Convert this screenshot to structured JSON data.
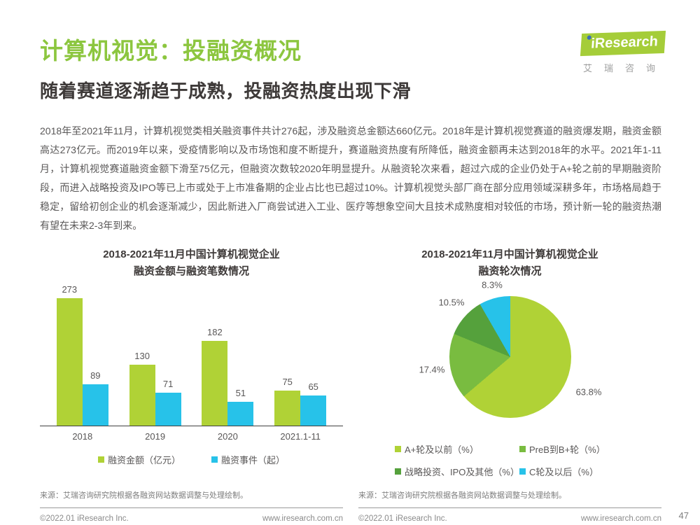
{
  "header": {
    "title": "计算机视觉：投融资概况",
    "subtitle": "随着赛道逐渐趋于成熟，投融资热度出现下滑"
  },
  "logo": {
    "brand": "iResearch",
    "brand_cn": "艾瑞咨询"
  },
  "body": {
    "paragraph": "2018年至2021年11月，计算机视觉类相关融资事件共计276起，涉及融资总金额达660亿元。2018年是计算机视觉赛道的融资爆发期，融资金额高达273亿元。而2019年以来，受疫情影响以及市场饱和度不断提升，赛道融资热度有所降低，融资金额再未达到2018年的水平。2021年1-11月，计算机视觉赛道融资金额下滑至75亿元，但融资次数较2020年明显提升。从融资轮次来看，超过六成的企业仍处于A+轮之前的早期融资阶段，而进入战略投资及IPO等已上市或处于上市准备期的企业占比也已超过10%。计算机视觉头部厂商在部分应用领域深耕多年，市场格局趋于稳定，留给初创企业的机会逐渐减少，因此新进入厂商尝试进入工业、医疗等想象空间大且技术成熟度相对较低的市场，预计新一轮的融资热潮有望在未来2-3年到来。"
  },
  "charts": {
    "bar": {
      "title_line1": "2018-2021年11月中国计算机视觉企业",
      "title_line2": "融资金额与融资笔数情况"
    },
    "pie": {
      "title_line1": "2018-2021年11月中国计算机视觉企业",
      "title_line2": "融资轮次情况"
    }
  },
  "chart_data": [
    {
      "type": "bar",
      "title": "2018-2021年11月中国计算机视觉企业融资金额与融资笔数情况",
      "categories": [
        "2018",
        "2019",
        "2020",
        "2021.1-11"
      ],
      "series": [
        {
          "name": "融资金额（亿元）",
          "color": "#b0d236",
          "values": [
            273,
            130,
            182,
            75
          ]
        },
        {
          "name": "融资事件（起）",
          "color": "#27c2e9",
          "values": [
            89,
            71,
            51,
            65
          ]
        }
      ],
      "ylim": [
        0,
        290
      ],
      "grid": false,
      "data_labels": true,
      "legend_position": "bottom"
    },
    {
      "type": "pie",
      "title": "2018-2021年11月中国计算机视觉企业融资轮次情况",
      "slices": [
        {
          "label": "A+轮及以前（%）",
          "value": 63.8,
          "color": "#b0d236"
        },
        {
          "label": "PreB到B+轮（%）",
          "value": 17.4,
          "color": "#79bc40"
        },
        {
          "label": "战略投资、IPO及其他（%）",
          "value": 10.5,
          "color": "#55a13c"
        },
        {
          "label": "C轮及以后（%）",
          "value": 8.3,
          "color": "#27c2e9"
        }
      ],
      "start_angle_deg": 0,
      "direction": "clockwise",
      "legend_position": "bottom"
    }
  ],
  "sources": {
    "left": "来源：艾瑞咨询研究院根据各融资网站数据调整与处理绘制。",
    "right": "来源：艾瑞咨询研究院根据各融资网站数据调整与处理绘制。"
  },
  "footer": {
    "left_copyright": "©2022.01 iResearch Inc.",
    "left_website": "www.iresearch.com.cn",
    "right_copyright": "©2022.01 iResearch Inc.",
    "right_website": "www.iresearch.com.cn",
    "page_number": "47"
  }
}
